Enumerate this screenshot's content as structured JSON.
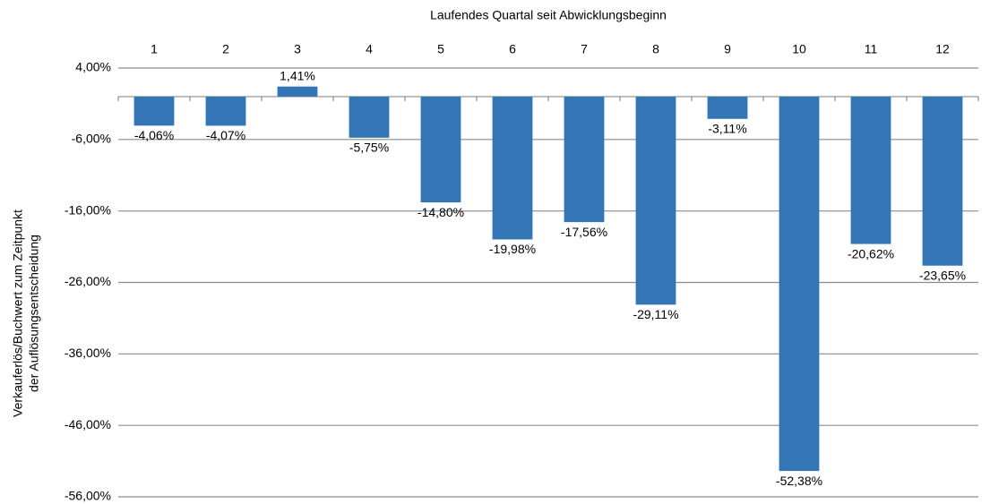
{
  "chart_data": {
    "type": "bar",
    "xlabel": "Laufendes Quartal seit Abwicklungsbeginn",
    "ylabel": [
      "Verkauferlös/Buchwert zum Zeitpunkt",
      "der Auflösungsentscheidung"
    ],
    "categories": [
      "1",
      "2",
      "3",
      "4",
      "5",
      "6",
      "7",
      "8",
      "9",
      "10",
      "11",
      "12"
    ],
    "values": [
      -4.06,
      -4.07,
      1.41,
      -5.75,
      -14.8,
      -19.98,
      -17.56,
      -29.11,
      -3.11,
      -52.38,
      -20.62,
      -23.65
    ],
    "value_labels": [
      "-4,06%",
      "-4,07%",
      "1,41%",
      "-5,75%",
      "-14,80%",
      "-19,98%",
      "-17,56%",
      "-29,11%",
      "-3,11%",
      "-52,38%",
      "-20,62%",
      "-23,65%"
    ],
    "color": "#3375b5",
    "ylim": [
      -56,
      4
    ],
    "yticks": [
      {
        "value": 4,
        "label": "4,00%"
      },
      {
        "value": -6,
        "label": "-6,00%"
      },
      {
        "value": -16,
        "label": "-16,00%"
      },
      {
        "value": -26,
        "label": "-26,00%"
      },
      {
        "value": -36,
        "label": "-36,00%"
      },
      {
        "value": -46,
        "label": "-46,00%"
      },
      {
        "value": -56,
        "label": "-56,00%"
      }
    ],
    "grid": true
  }
}
